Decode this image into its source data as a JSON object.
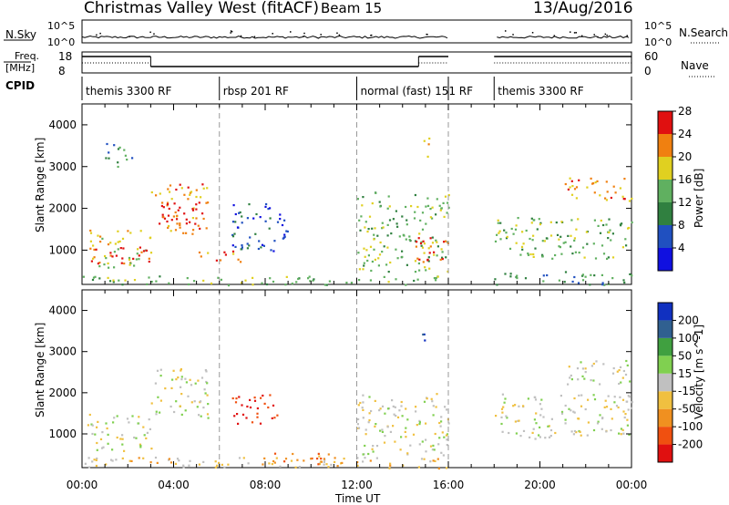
{
  "header": {
    "title": "Christmas Valley West (fitACF)",
    "beam": "Beam 15",
    "date": "13/Aug/2016"
  },
  "panels": {
    "nsky": {
      "left_label": "N.Sky",
      "right_label": "N.Search",
      "left_ticks": [
        "10^5",
        "10^0"
      ],
      "right_ticks": [
        "10^5",
        "10^0"
      ]
    },
    "freq": {
      "left_label_1": "Freq.",
      "left_label_2": "[MHz]",
      "right_label": "Nave",
      "left_ticks": [
        "18",
        "8"
      ],
      "right_ticks": [
        "60",
        "0"
      ]
    },
    "cpid": {
      "label": "CPID",
      "segments": [
        {
          "start_h": 0,
          "end_h": 6,
          "label": "themis 3300 RF"
        },
        {
          "start_h": 6,
          "end_h": 12,
          "label": "rbsp 201 RF"
        },
        {
          "start_h": 12,
          "end_h": 16,
          "label": "normal (fast) 151 RF"
        },
        {
          "start_h": 18,
          "end_h": 24,
          "label": "themis 3300 RF"
        }
      ]
    }
  },
  "chart_data": [
    {
      "type": "heatmap",
      "title": "",
      "xlabel": "Time UT",
      "ylabel": "Slant Range [km]",
      "xlim": [
        0,
        24
      ],
      "ylim": [
        180,
        4500
      ],
      "yticks": [
        1000,
        2000,
        3000,
        4000
      ],
      "xtick_labels": [
        "00:00",
        "04:00",
        "08:00",
        "12:00",
        "16:00",
        "20:00",
        "00:00"
      ],
      "colorbar": {
        "label": "Power [dB]",
        "ticks": [
          "4",
          "8",
          "12",
          "16",
          "20",
          "24",
          "28"
        ],
        "colors": [
          "#1010e0",
          "#2050c0",
          "#308040",
          "#60b060",
          "#e0d020",
          "#f08010",
          "#e01010"
        ]
      },
      "regions": [
        {
          "t0": 0.2,
          "t1": 3.0,
          "r0": 600,
          "r1": 1500,
          "c": 4
        },
        {
          "t0": 0.2,
          "t1": 3.0,
          "r0": 700,
          "r1": 1100,
          "c": 6
        },
        {
          "t0": 1.0,
          "t1": 2.2,
          "r0": 3000,
          "r1": 3600,
          "c": 2
        },
        {
          "t0": 3.0,
          "t1": 5.5,
          "r0": 1400,
          "r1": 2600,
          "c": 5
        },
        {
          "t0": 3.3,
          "t1": 5.0,
          "r0": 1500,
          "r1": 2200,
          "c": 6
        },
        {
          "t0": 6.5,
          "t1": 9.0,
          "r0": 1000,
          "r1": 2200,
          "c": 1
        },
        {
          "t0": 5.0,
          "t1": 7.0,
          "r0": 700,
          "r1": 1000,
          "c": 5
        },
        {
          "t0": 0.0,
          "t1": 16.0,
          "r0": 180,
          "r1": 400,
          "c": 3
        },
        {
          "t0": 12.0,
          "t1": 16.0,
          "r0": 500,
          "r1": 2400,
          "c": 3
        },
        {
          "t0": 14.5,
          "t1": 16.0,
          "r0": 700,
          "r1": 1400,
          "c": 6
        },
        {
          "t0": 14.8,
          "t1": 15.2,
          "r0": 3200,
          "r1": 3700,
          "c": 4
        },
        {
          "t0": 18.0,
          "t1": 24.0,
          "r0": 800,
          "r1": 1800,
          "c": 3
        },
        {
          "t0": 21.0,
          "t1": 24.0,
          "r0": 2200,
          "r1": 2800,
          "c": 5
        },
        {
          "t0": 18.0,
          "t1": 24.0,
          "r0": 180,
          "r1": 500,
          "c": 2
        }
      ]
    },
    {
      "type": "heatmap",
      "title": "",
      "xlabel": "Time UT",
      "ylabel": "Slant Range [km]",
      "xlim": [
        0,
        24
      ],
      "ylim": [
        180,
        4500
      ],
      "yticks": [
        1000,
        2000,
        3000,
        4000
      ],
      "xtick_labels": [
        "00:00",
        "04:00",
        "08:00",
        "12:00",
        "16:00",
        "20:00",
        "00:00"
      ],
      "colorbar": {
        "label": "Velocity [m s^-1]",
        "ticks": [
          "-200",
          "-100",
          "-50",
          "-15",
          "15",
          "50",
          "100",
          "200"
        ],
        "colors": [
          "#e01010",
          "#f05010",
          "#f09020",
          "#f0c040",
          "#c0c0c0",
          "#80d050",
          "#40a040",
          "#306090",
          "#1030c0"
        ]
      },
      "regions": [
        {
          "t0": 0.2,
          "t1": 3.0,
          "r0": 600,
          "r1": 1500,
          "c": 4
        },
        {
          "t0": 3.0,
          "t1": 5.5,
          "r0": 1400,
          "r1": 2600,
          "c": 4
        },
        {
          "t0": 6.5,
          "t1": 8.5,
          "r0": 1200,
          "r1": 2000,
          "c": 0
        },
        {
          "t0": 0.0,
          "t1": 16.0,
          "r0": 180,
          "r1": 450,
          "c": 3
        },
        {
          "t0": 8.0,
          "t1": 12.0,
          "r0": 200,
          "r1": 550,
          "c": 2
        },
        {
          "t0": 12.0,
          "t1": 16.0,
          "r0": 500,
          "r1": 2000,
          "c": 4
        },
        {
          "t0": 14.8,
          "t1": 15.2,
          "r0": 3200,
          "r1": 3600,
          "c": 8
        },
        {
          "t0": 18.0,
          "t1": 24.0,
          "r0": 900,
          "r1": 2000,
          "c": 4
        },
        {
          "t0": 21.0,
          "t1": 24.0,
          "r0": 2200,
          "r1": 2800,
          "c": 4
        }
      ]
    }
  ]
}
